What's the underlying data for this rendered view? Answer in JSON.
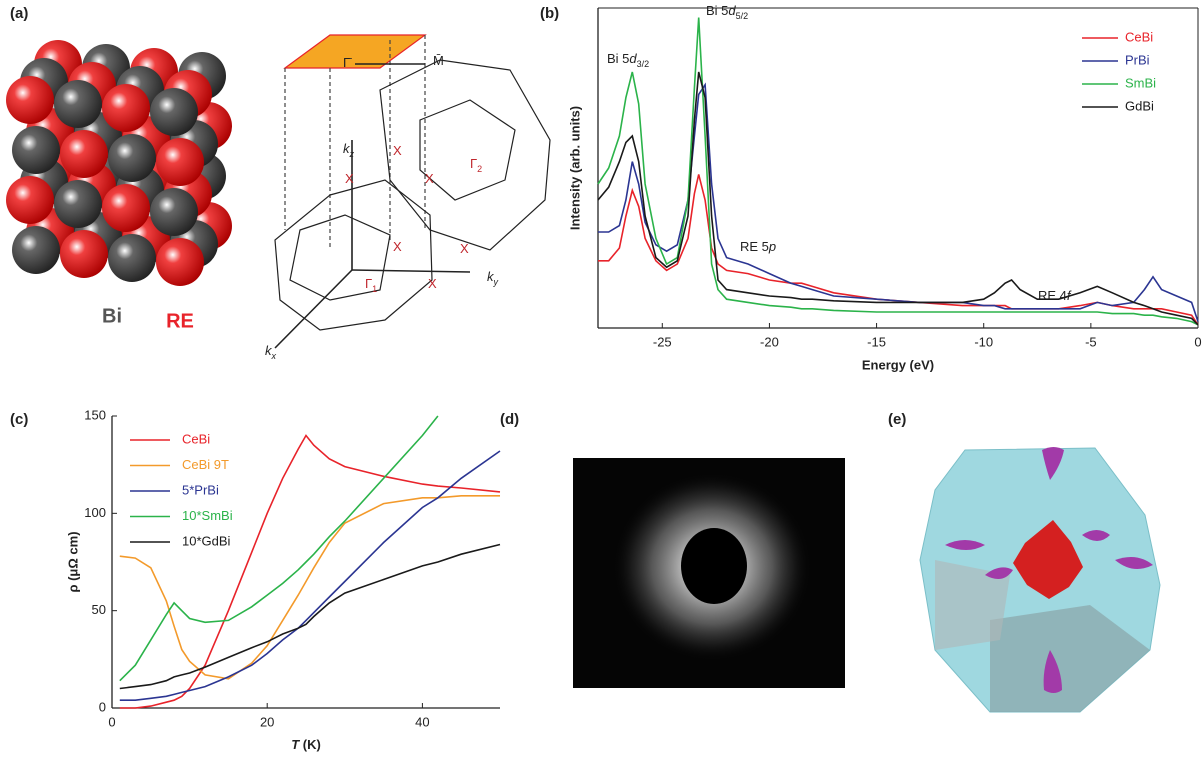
{
  "panels": {
    "a": {
      "label": "(a)",
      "atoms": [
        "Bi",
        "RE"
      ],
      "bz": [
        {
          "text": "Γ̄"
        },
        {
          "text": "M̄"
        },
        {
          "text": "k",
          "sub": "z"
        },
        {
          "text": "k",
          "sub": "y"
        },
        {
          "text": "k",
          "sub": "x"
        },
        {
          "text": "X"
        },
        {
          "text": "X"
        },
        {
          "text": "X"
        },
        {
          "text": "X"
        },
        {
          "text": "X"
        },
        {
          "text": "X"
        },
        {
          "text": "Γ",
          "sub": "1"
        },
        {
          "text": "Γ",
          "sub": "2"
        }
      ]
    },
    "d": {
      "label": "(d)"
    },
    "e": {
      "label": "(e)"
    }
  },
  "chart_data": [
    {
      "type": "line",
      "label": "(b)",
      "xlabel": "Energy (eV)",
      "ylabel": "Intensity (arb. units)",
      "x": [
        -28,
        -27.5,
        -27,
        -26.7,
        -26.4,
        -26.1,
        -25.8,
        -25.3,
        -24.8,
        -24.3,
        -23.8,
        -23.5,
        -23.3,
        -23.0,
        -22.7,
        -22.4,
        -22,
        -21,
        -20,
        -19,
        -18.5,
        -18,
        -17,
        -15,
        -13,
        -11,
        -10,
        -9.5,
        -9,
        -8.7,
        -8.3,
        -7.5,
        -6.5,
        -5.5,
        -4.7,
        -4,
        -3,
        -2.5,
        -2.1,
        -1.7,
        -1,
        -0.3,
        0
      ],
      "xlim": [
        -28,
        0
      ],
      "xticks": [
        -25,
        -20,
        -15,
        -10,
        -5,
        0
      ],
      "ylim": [
        0,
        100
      ],
      "legend": "top-right",
      "annotations": [
        {
          "text": "Bi 5",
          "italic": "d",
          "sub": "3/2"
        },
        {
          "text": "Bi 5",
          "italic": "d",
          "sub": "5/2"
        },
        {
          "text": "RE 5",
          "italic": "p"
        },
        {
          "text": "RE 4",
          "italic": "f"
        }
      ],
      "series": [
        {
          "name": "CeBi",
          "color": "#e8232a",
          "values": [
            21,
            21,
            25,
            35,
            43,
            38,
            28,
            21,
            18,
            20,
            28,
            42,
            48,
            40,
            25,
            20,
            18,
            17,
            15,
            14,
            14,
            13,
            11,
            9,
            8,
            7,
            7,
            7,
            7,
            6,
            6,
            6,
            6,
            7,
            8,
            7,
            6,
            6,
            6,
            6,
            5,
            4,
            1
          ]
        },
        {
          "name": "PrBi",
          "color": "#2b3592",
          "values": [
            30,
            30,
            32,
            40,
            52,
            45,
            33,
            26,
            24,
            26,
            40,
            60,
            73,
            76,
            45,
            28,
            22,
            20,
            17,
            14,
            13,
            12,
            10,
            9,
            8,
            8,
            7,
            7,
            6,
            6,
            6,
            6,
            6,
            6,
            8,
            7,
            8,
            12,
            16,
            12,
            10,
            8,
            2
          ]
        },
        {
          "name": "SmBi",
          "color": "#2bb34a",
          "values": [
            45,
            50,
            60,
            72,
            80,
            70,
            45,
            28,
            20,
            22,
            40,
            75,
            97,
            60,
            20,
            12,
            9,
            8,
            7,
            6.5,
            6,
            6,
            5.5,
            5,
            5,
            5,
            5,
            5,
            5,
            5,
            5,
            5,
            5,
            5,
            5,
            4.5,
            4.5,
            4,
            4,
            3.5,
            3,
            2,
            1
          ]
        },
        {
          "name": "GdBi",
          "color": "#1a1a1a",
          "values": [
            40,
            44,
            52,
            58,
            60,
            52,
            35,
            22,
            19,
            21,
            35,
            65,
            80,
            72,
            35,
            15,
            12,
            11,
            10,
            9.5,
            9,
            9,
            8.5,
            8,
            8,
            8,
            9,
            11,
            14,
            15,
            12,
            9,
            9,
            11,
            13,
            11,
            8,
            7,
            6,
            5,
            4,
            3,
            1
          ]
        }
      ]
    },
    {
      "type": "line",
      "label": "(c)",
      "xlabel": {
        "italic": "T",
        "text": " (K)"
      },
      "ylabel": "ρ (μΩ cm)",
      "x": [
        1,
        3,
        5,
        7,
        8,
        9,
        10,
        12,
        15,
        18,
        20,
        22,
        24,
        25,
        26,
        28,
        30,
        35,
        40,
        42,
        45,
        50
      ],
      "xlim": [
        0,
        50
      ],
      "xticks": [
        0,
        20,
        40
      ],
      "ylim": [
        0,
        150
      ],
      "yticks": [
        0,
        50,
        100,
        150
      ],
      "legend": "top-left",
      "series": [
        {
          "name": "CeBi",
          "color": "#e8232a",
          "values": [
            0,
            0,
            1,
            3,
            4,
            6,
            10,
            22,
            50,
            80,
            100,
            118,
            133,
            140,
            135,
            128,
            124,
            119,
            115,
            114,
            113,
            111
          ]
        },
        {
          "name": "CeBi 9T",
          "color": "#f39a2b",
          "values": [
            78,
            77,
            72,
            55,
            42,
            30,
            24,
            17,
            15,
            23,
            32,
            45,
            58,
            65,
            72,
            85,
            95,
            105,
            108,
            108,
            109,
            109
          ]
        },
        {
          "name": "5*PrBi",
          "color": "#2b3592",
          "values": [
            4,
            4,
            5,
            6,
            7,
            8,
            9,
            11,
            16,
            22,
            28,
            35,
            41,
            45,
            49,
            57,
            65,
            85,
            103,
            108,
            118,
            132
          ]
        },
        {
          "name": "10*SmBi",
          "color": "#2bb34a",
          "values": [
            14,
            22,
            35,
            48,
            54,
            50,
            46,
            44,
            45,
            52,
            58,
            64,
            71,
            75,
            79,
            88,
            96,
            118,
            140,
            150,
            null,
            null
          ]
        },
        {
          "name": "10*GdBi",
          "color": "#1a1a1a",
          "values": [
            10,
            11,
            12,
            14,
            16,
            17,
            18,
            21,
            26,
            31,
            34,
            38,
            41,
            43,
            47,
            54,
            59,
            66,
            73,
            75,
            79,
            84
          ]
        }
      ]
    }
  ]
}
